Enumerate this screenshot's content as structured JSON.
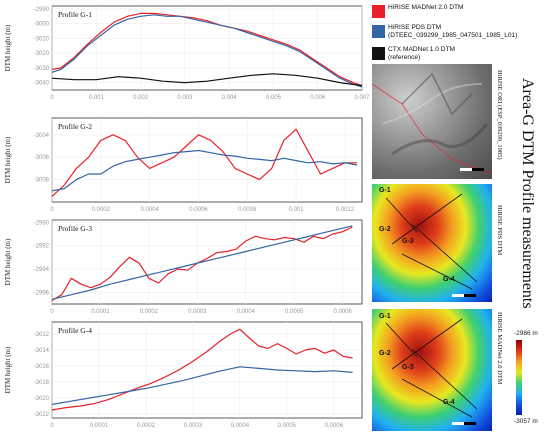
{
  "figure_title": "Area-G DTM Profile measurements",
  "legend": [
    {
      "label": "HiRISE MADNet 2.0 DTM",
      "color": "#e8202a"
    },
    {
      "label": "HiRISE PDS DTM\n(DTEEC_039299_1985_047501_1985_L01)",
      "color": "#3465a4"
    },
    {
      "label": "CTX MADNet 1.0 DTM\n(reference)",
      "color": "#111111"
    }
  ],
  "images": {
    "ori_label": "HiRISE ORI (ESP_039299_1985)",
    "pds_label": "HiRISE PDS DTM",
    "madnet_label": "HiRISE MADNet 2.0 DTM",
    "profile_labels": [
      "G-1",
      "G-2",
      "G-3",
      "G-4"
    ],
    "colorbar": {
      "max_label": "-2986 m",
      "min_label": "-3057 m",
      "max": -2986,
      "min": -3057
    }
  },
  "chart_data": [
    {
      "type": "line",
      "title": "Profile G-1",
      "ylabel": "DTM height (m)",
      "xlim": [
        0,
        0.007
      ],
      "ylim": [
        -3045,
        -2988
      ],
      "xticks": [
        0,
        0.001,
        0.002,
        0.003,
        0.004,
        0.005,
        0.006,
        0.007
      ],
      "xtick_labels": [
        "0",
        "0.001",
        "0.002",
        "0.003",
        "0.004",
        "0.005",
        "0.006",
        "0.007"
      ],
      "yticks": [
        -2990,
        -3000,
        -3010,
        -3020,
        -3030,
        -3040
      ],
      "ytick_labels": [
        "-2990",
        "-3000",
        "-3010",
        "-3020",
        "-3030",
        "-3040"
      ],
      "series": [
        {
          "name": "HiRISE MADNet 2.0 DTM",
          "color": "#e8202a",
          "x": [
            0,
            0.0002,
            0.0005,
            0.0008,
            0.0011,
            0.0014,
            0.0017,
            0.002,
            0.0023,
            0.0026,
            0.0029,
            0.0032,
            0.0035,
            0.0038,
            0.0041,
            0.0044,
            0.0047,
            0.005,
            0.0053,
            0.0056,
            0.0059,
            0.0062,
            0.0065,
            0.0068,
            0.007
          ],
          "values": [
            -3031,
            -3030,
            -3023,
            -3014,
            -3006,
            -2999,
            -2995,
            -2993,
            -2993,
            -2994,
            -2995,
            -2996,
            -2998,
            -3001,
            -3003,
            -3005,
            -3008,
            -3011,
            -3014,
            -3018,
            -3024,
            -3030,
            -3036,
            -3040,
            -3042
          ]
        },
        {
          "name": "HiRISE PDS DTM",
          "color": "#3465a4",
          "x": [
            0,
            0.0002,
            0.0005,
            0.0008,
            0.0011,
            0.0014,
            0.0017,
            0.002,
            0.0023,
            0.0026,
            0.0029,
            0.0032,
            0.0035,
            0.0038,
            0.0041,
            0.0044,
            0.0047,
            0.005,
            0.0053,
            0.0056,
            0.0059,
            0.0062,
            0.0065,
            0.0068,
            0.007
          ],
          "values": [
            -3033,
            -3031,
            -3024,
            -3015,
            -3008,
            -3001,
            -2997,
            -2995,
            -2994,
            -2995,
            -2995,
            -2997,
            -2999,
            -3001,
            -3003,
            -3006,
            -3009,
            -3012,
            -3015,
            -3019,
            -3025,
            -3031,
            -3037,
            -3041,
            -3043
          ]
        },
        {
          "name": "CTX MADNet 1.0 DTM",
          "color": "#111111",
          "x": [
            0,
            0.0005,
            0.001,
            0.0015,
            0.002,
            0.0025,
            0.003,
            0.0035,
            0.004,
            0.0045,
            0.005,
            0.0055,
            0.006,
            0.0065,
            0.007
          ],
          "values": [
            -3037,
            -3038,
            -3038,
            -3036,
            -3037,
            -3039,
            -3040,
            -3039,
            -3037,
            -3035,
            -3034,
            -3035,
            -3037,
            -3040,
            -3042
          ]
        }
      ]
    },
    {
      "type": "line",
      "title": "Profile G-2",
      "ylabel": "DTM height (m)",
      "xlim": [
        0,
        0.00127
      ],
      "ylim": [
        -3010,
        -3002.5
      ],
      "xticks": [
        0,
        0.0002,
        0.0004,
        0.0006,
        0.0008,
        0.001,
        0.0012
      ],
      "xtick_labels": [
        "0",
        "0.0002",
        "0.0004",
        "0.0006",
        "0.0008",
        "0.001",
        "0.0012"
      ],
      "yticks": [
        -3004,
        -3006,
        -3008
      ],
      "ytick_labels": [
        "-3004",
        "-3006",
        "-3008"
      ],
      "series": [
        {
          "name": "HiRISE MADNet 2.0 DTM",
          "color": "#e8202a",
          "x": [
            0,
            5e-05,
            0.0001,
            0.00015,
            0.0002,
            0.00025,
            0.0003,
            0.00035,
            0.0004,
            0.00045,
            0.0005,
            0.00055,
            0.0006,
            0.00065,
            0.0007,
            0.00075,
            0.0008,
            0.00085,
            0.0009,
            0.00095,
            0.001,
            0.00105,
            0.0011,
            0.00115,
            0.0012,
            0.00125
          ],
          "values": [
            -3009.5,
            -3008.5,
            -3007,
            -3006,
            -3004.5,
            -3004,
            -3004.5,
            -3006,
            -3007,
            -3006.5,
            -3006,
            -3005,
            -3004,
            -3004.5,
            -3005.5,
            -3007,
            -3007.5,
            -3008,
            -3007,
            -3004.5,
            -3003.5,
            -3005.5,
            -3007.5,
            -3007,
            -3006.5,
            -3006.5
          ]
        },
        {
          "name": "HiRISE PDS DTM",
          "color": "#3465a4",
          "x": [
            0,
            5e-05,
            0.0001,
            0.00015,
            0.0002,
            0.00025,
            0.0003,
            0.00035,
            0.0004,
            0.00045,
            0.0005,
            0.00055,
            0.0006,
            0.00065,
            0.0007,
            0.00075,
            0.0008,
            0.00085,
            0.0009,
            0.00095,
            0.001,
            0.00105,
            0.0011,
            0.00115,
            0.0012,
            0.00125
          ],
          "values": [
            -3009,
            -3008.8,
            -3008,
            -3007.5,
            -3007.5,
            -3006.8,
            -3006.4,
            -3006.2,
            -3006,
            -3005.8,
            -3005.6,
            -3005.5,
            -3005.4,
            -3005.6,
            -3005.8,
            -3005.9,
            -3006.1,
            -3006.2,
            -3006.3,
            -3006.1,
            -3006.3,
            -3006.5,
            -3006.4,
            -3006.6,
            -3006.5,
            -3006.7
          ]
        }
      ]
    },
    {
      "type": "line",
      "title": "Profile G-3",
      "ylabel": "DTM height (m)",
      "xlim": [
        0,
        0.00064
      ],
      "ylim": [
        -2997,
        -2989.8
      ],
      "xticks": [
        0,
        0.0001,
        0.0002,
        0.0003,
        0.0004,
        0.0005,
        0.0006
      ],
      "xtick_labels": [
        "0",
        "0.0001",
        "0.0002",
        "0.0003",
        "0.0004",
        "0.0005",
        "0.0006"
      ],
      "yticks": [
        -2990,
        -2992,
        -2994,
        -2996
      ],
      "ytick_labels": [
        "-2990",
        "-2992",
        "-2994",
        "-2996"
      ],
      "series": [
        {
          "name": "HiRISE MADNet 2.0 DTM",
          "color": "#e8202a",
          "x": [
            0,
            2e-05,
            4e-05,
            6e-05,
            8e-05,
            0.0001,
            0.00012,
            0.00014,
            0.00016,
            0.00018,
            0.0002,
            0.00022,
            0.00024,
            0.00026,
            0.00028,
            0.0003,
            0.00032,
            0.00034,
            0.00036,
            0.00038,
            0.0004,
            0.00042,
            0.00044,
            0.00046,
            0.00048,
            0.0005,
            0.00052,
            0.00054,
            0.00056,
            0.00058,
            0.0006,
            0.00062
          ],
          "values": [
            -2996.7,
            -2996.2,
            -2994.8,
            -2995.3,
            -2995.6,
            -2995.3,
            -2994.7,
            -2993.8,
            -2993,
            -2993.5,
            -2994.8,
            -2995.2,
            -2994.4,
            -2994,
            -2994.1,
            -2993.5,
            -2993.1,
            -2992.6,
            -2992.5,
            -2992.3,
            -2991.6,
            -2991.2,
            -2991.4,
            -2991.5,
            -2991.3,
            -2991.4,
            -2991.7,
            -2991.2,
            -2991.4,
            -2991,
            -2990.8,
            -2990.4
          ]
        },
        {
          "name": "HiRISE PDS DTM",
          "color": "#3465a4",
          "x": [
            0,
            4e-05,
            8e-05,
            0.00012,
            0.00016,
            0.0002,
            0.00024,
            0.00028,
            0.00032,
            0.00036,
            0.0004,
            0.00044,
            0.00048,
            0.00052,
            0.00056,
            0.0006,
            0.00062
          ],
          "values": [
            -2996.6,
            -2996.2,
            -2995.8,
            -2995.3,
            -2994.9,
            -2994.5,
            -2994.1,
            -2993.7,
            -2993.3,
            -2992.9,
            -2992.5,
            -2992.1,
            -2991.7,
            -2991.3,
            -2990.9,
            -2990.5,
            -2990.3
          ]
        }
      ]
    },
    {
      "type": "line",
      "title": "Profile G-4",
      "ylabel": "DTM height (m)",
      "xlim": [
        0,
        0.00066
      ],
      "ylim": [
        -3022.5,
        -3010.5
      ],
      "xticks": [
        0,
        0.0001,
        0.0002,
        0.0003,
        0.0004,
        0.0005,
        0.0006
      ],
      "xtick_labels": [
        "0",
        "0.0001",
        "0.0002",
        "0.0003",
        "0.0004",
        "0.0005",
        "0.0006"
      ],
      "yticks": [
        -3012,
        -3014,
        -3016,
        -3018,
        -3020,
        -3022
      ],
      "ytick_labels": [
        "-3012",
        "-3014",
        "-3016",
        "-3018",
        "-3020",
        "-3022"
      ],
      "series": [
        {
          "name": "HiRISE MADNet 2.0 DTM",
          "color": "#e8202a",
          "x": [
            0,
            3e-05,
            6e-05,
            9e-05,
            0.00012,
            0.00015,
            0.00018,
            0.00021,
            0.00024,
            0.00027,
            0.0003,
            0.00033,
            0.00036,
            0.00038,
            0.0004,
            0.00042,
            0.00044,
            0.00046,
            0.00048,
            0.0005,
            0.00052,
            0.00054,
            0.00056,
            0.00058,
            0.0006,
            0.00062,
            0.00064
          ],
          "values": [
            -3021.5,
            -3021.2,
            -3021,
            -3020.7,
            -3020.2,
            -3019.5,
            -3018.8,
            -3018.2,
            -3017.4,
            -3016.5,
            -3015.4,
            -3014.2,
            -3012.8,
            -3012,
            -3011.4,
            -3012.5,
            -3013.5,
            -3013.8,
            -3013.2,
            -3013.8,
            -3014.5,
            -3014,
            -3013.8,
            -3014.4,
            -3014,
            -3014.8,
            -3015
          ]
        },
        {
          "name": "HiRISE PDS DTM",
          "color": "#3465a4",
          "x": [
            0,
            4e-05,
            8e-05,
            0.00012,
            0.00016,
            0.0002,
            0.00024,
            0.00028,
            0.00032,
            0.00036,
            0.0004,
            0.00044,
            0.00048,
            0.00052,
            0.00056,
            0.0006,
            0.00064
          ],
          "values": [
            -3020.8,
            -3020.4,
            -3020,
            -3019.6,
            -3019.2,
            -3018.8,
            -3018.3,
            -3017.8,
            -3017.2,
            -3016.6,
            -3016.1,
            -3016.3,
            -3016.5,
            -3016.6,
            -3016.7,
            -3016.6,
            -3016.8
          ]
        }
      ]
    }
  ]
}
